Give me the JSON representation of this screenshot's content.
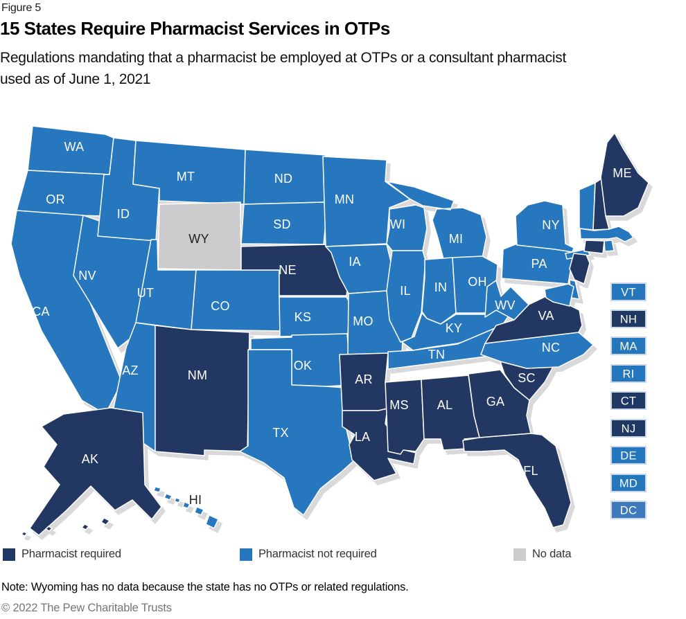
{
  "figure_label": "Figure 5",
  "title": "15 States Require Pharmacist Services in OTPs",
  "subtitle": "Regulations mandating that a pharmacist be employed at OTPs or a consultant pharmacist used as of June 1, 2021",
  "note": "Note: Wyoming has no data because the state has no OTPs or related regulations.",
  "copyright": "© 2022 The Pew Charitable Trusts",
  "legend": [
    {
      "label": "Pharmacist required",
      "color": "#203864"
    },
    {
      "label": "Pharmacist not required",
      "color": "#2577BD"
    },
    {
      "label": "No data",
      "color": "#CCCCCE"
    }
  ],
  "colors": {
    "required": "#203864",
    "not_required": "#2577BD",
    "no_data": "#CCCCCE",
    "dc_not_required": "#3E79BE",
    "state_border": "#FFFFFF",
    "inset_border": "#CCD8EA",
    "coast_shadow": "#D9D9DC",
    "label_light": "#FFFFFF",
    "label_dark": "#1F1F1F"
  },
  "map": {
    "states": [
      {
        "abbr": "WA",
        "status": "not_required"
      },
      {
        "abbr": "OR",
        "status": "not_required"
      },
      {
        "abbr": "CA",
        "status": "not_required"
      },
      {
        "abbr": "NV",
        "status": "not_required"
      },
      {
        "abbr": "ID",
        "status": "not_required"
      },
      {
        "abbr": "MT",
        "status": "not_required"
      },
      {
        "abbr": "WY",
        "status": "no_data"
      },
      {
        "abbr": "UT",
        "status": "not_required"
      },
      {
        "abbr": "CO",
        "status": "not_required"
      },
      {
        "abbr": "AZ",
        "status": "not_required"
      },
      {
        "abbr": "NM",
        "status": "required"
      },
      {
        "abbr": "ND",
        "status": "not_required"
      },
      {
        "abbr": "SD",
        "status": "not_required"
      },
      {
        "abbr": "NE",
        "status": "required"
      },
      {
        "abbr": "KS",
        "status": "not_required"
      },
      {
        "abbr": "OK",
        "status": "not_required"
      },
      {
        "abbr": "TX",
        "status": "not_required"
      },
      {
        "abbr": "MN",
        "status": "not_required"
      },
      {
        "abbr": "IA",
        "status": "not_required"
      },
      {
        "abbr": "MO",
        "status": "not_required"
      },
      {
        "abbr": "AR",
        "status": "required"
      },
      {
        "abbr": "LA",
        "status": "required"
      },
      {
        "abbr": "WI",
        "status": "not_required"
      },
      {
        "abbr": "IL",
        "status": "not_required"
      },
      {
        "abbr": "MI",
        "status": "not_required"
      },
      {
        "abbr": "IN",
        "status": "not_required"
      },
      {
        "abbr": "OH",
        "status": "not_required"
      },
      {
        "abbr": "KY",
        "status": "not_required"
      },
      {
        "abbr": "TN",
        "status": "not_required"
      },
      {
        "abbr": "MS",
        "status": "required"
      },
      {
        "abbr": "AL",
        "status": "required"
      },
      {
        "abbr": "GA",
        "status": "required"
      },
      {
        "abbr": "FL",
        "status": "required"
      },
      {
        "abbr": "SC",
        "status": "required"
      },
      {
        "abbr": "NC",
        "status": "not_required"
      },
      {
        "abbr": "VA",
        "status": "required"
      },
      {
        "abbr": "WV",
        "status": "not_required"
      },
      {
        "abbr": "PA",
        "status": "not_required"
      },
      {
        "abbr": "NY",
        "status": "not_required"
      },
      {
        "abbr": "NJ",
        "status": "required"
      },
      {
        "abbr": "DE",
        "status": "not_required"
      },
      {
        "abbr": "MD",
        "status": "not_required"
      },
      {
        "abbr": "VT",
        "status": "not_required"
      },
      {
        "abbr": "NH",
        "status": "required"
      },
      {
        "abbr": "MA",
        "status": "not_required"
      },
      {
        "abbr": "CT",
        "status": "required"
      },
      {
        "abbr": "RI",
        "status": "not_required"
      },
      {
        "abbr": "ME",
        "status": "required"
      },
      {
        "abbr": "AK",
        "status": "required"
      },
      {
        "abbr": "HI",
        "status": "not_required"
      }
    ],
    "east_inset": [
      {
        "abbr": "VT",
        "status": "not_required"
      },
      {
        "abbr": "NH",
        "status": "required"
      },
      {
        "abbr": "MA",
        "status": "not_required"
      },
      {
        "abbr": "RI",
        "status": "not_required"
      },
      {
        "abbr": "CT",
        "status": "required"
      },
      {
        "abbr": "NJ",
        "status": "required"
      },
      {
        "abbr": "DE",
        "status": "not_required"
      },
      {
        "abbr": "MD",
        "status": "not_required"
      },
      {
        "abbr": "DC",
        "status": "not_required"
      }
    ]
  },
  "chart_data": {
    "type": "choropleth_map",
    "title": "15 States Require Pharmacist Services in OTPs",
    "subtitle": "Regulations mandating that a pharmacist be employed at OTPs or a consultant pharmacist used as of June 1, 2021",
    "categories": [
      "Pharmacist required",
      "Pharmacist not required",
      "No data"
    ],
    "pharmacist_required": [
      "AK",
      "NE",
      "NM",
      "AR",
      "LA",
      "MS",
      "AL",
      "GA",
      "SC",
      "FL",
      "VA",
      "ME",
      "NH",
      "CT",
      "NJ"
    ],
    "pharmacist_not_required": [
      "WA",
      "OR",
      "CA",
      "NV",
      "ID",
      "MT",
      "UT",
      "CO",
      "AZ",
      "ND",
      "SD",
      "KS",
      "OK",
      "TX",
      "MN",
      "IA",
      "MO",
      "WI",
      "IL",
      "MI",
      "IN",
      "OH",
      "KY",
      "TN",
      "NC",
      "WV",
      "PA",
      "NY",
      "VT",
      "MA",
      "RI",
      "DE",
      "MD",
      "DC",
      "HI"
    ],
    "no_data": [
      "WY"
    ],
    "legend_position": "bottom",
    "note": "Note: Wyoming has no data because the state has no OTPs or related regulations."
  }
}
